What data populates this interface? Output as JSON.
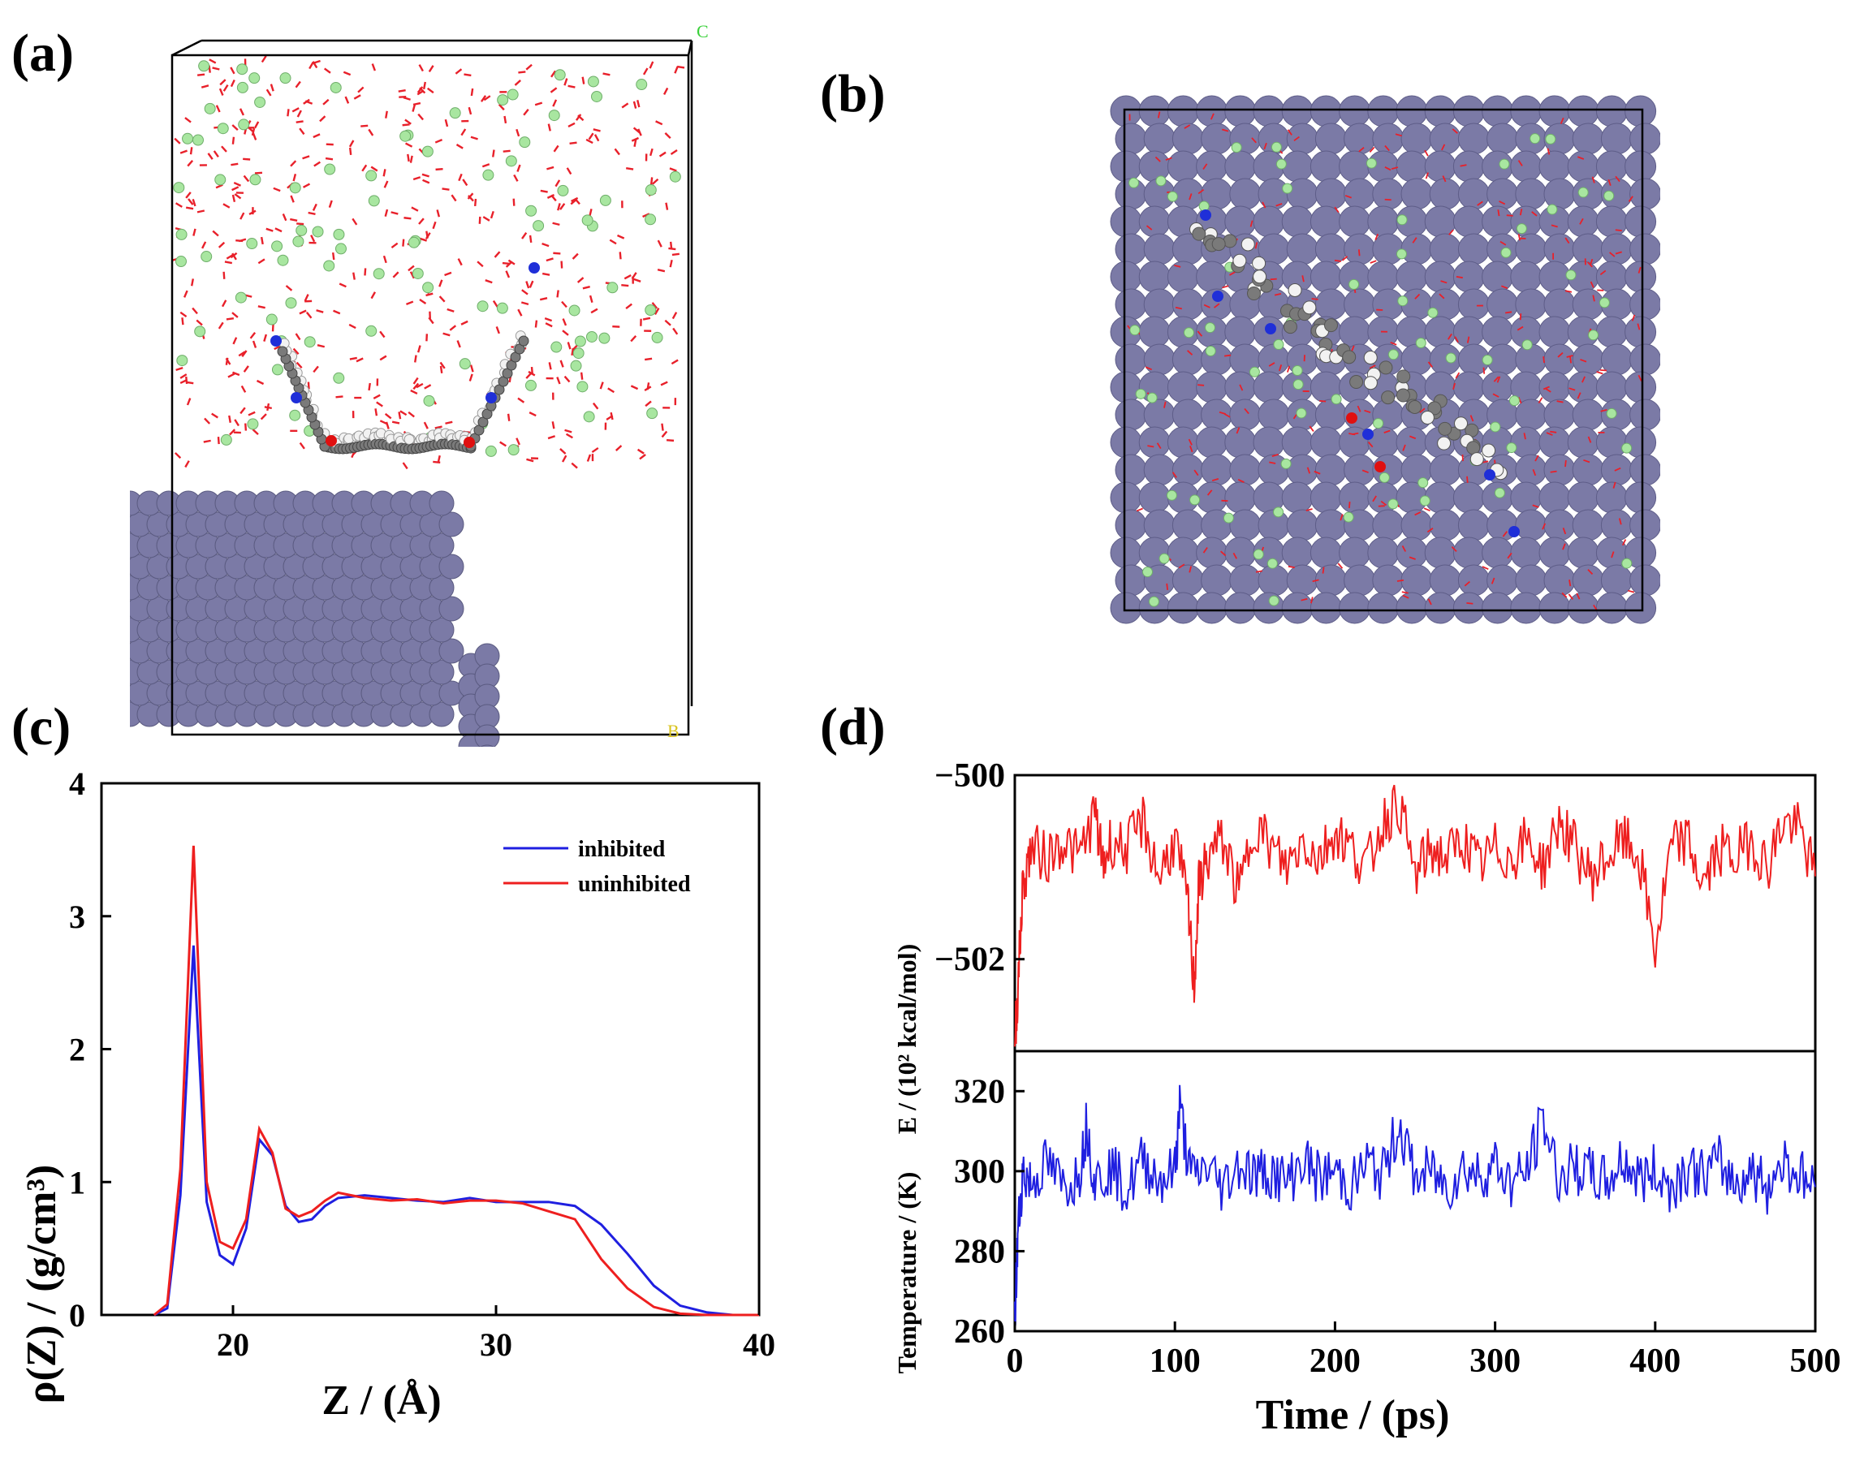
{
  "panels": {
    "a": {
      "label": "(a)",
      "axis_markers": [
        "C",
        "B"
      ]
    },
    "b": {
      "label": "(b)"
    },
    "c": {
      "label": "(c)"
    },
    "d": {
      "label": "(d)"
    }
  },
  "colors": {
    "surface_atom": "#7b7aa6",
    "water": "#e8202a",
    "ion": "#a8e6a0",
    "carbon": "#7a7a7a",
    "hydrogen": "#f2f2f2",
    "nitrogen": "#1f2fd8",
    "oxygen": "#e01010",
    "inhibited": "#1f1fe0",
    "uninhibited": "#ee1f1f"
  },
  "chart_data": [
    {
      "type": "line",
      "panel": "c",
      "xlabel": "Z / (Å)",
      "ylabel": "ρ(Z) / (g/cm³)",
      "xlim": [
        15,
        40
      ],
      "ylim": [
        0,
        4
      ],
      "xticks": [
        "20",
        "30",
        "40"
      ],
      "yticks": [
        "0",
        "1",
        "2",
        "3",
        "4"
      ],
      "legend_position": "top-right",
      "series": [
        {
          "name": "inhibited",
          "color": "#1f1fe0",
          "x": [
            17.0,
            17.5,
            18.0,
            18.5,
            19.0,
            19.5,
            20.0,
            20.5,
            21.0,
            21.5,
            22.0,
            22.5,
            23.0,
            23.5,
            24.0,
            25.0,
            26.0,
            27.0,
            28.0,
            29.0,
            30.0,
            31.0,
            32.0,
            33.0,
            34.0,
            35.0,
            36.0,
            37.0,
            38.0,
            39.0,
            40.0
          ],
          "y": [
            0.0,
            0.05,
            0.9,
            2.78,
            0.85,
            0.45,
            0.38,
            0.65,
            1.32,
            1.2,
            0.82,
            0.7,
            0.72,
            0.82,
            0.88,
            0.9,
            0.88,
            0.86,
            0.85,
            0.88,
            0.85,
            0.85,
            0.85,
            0.82,
            0.68,
            0.46,
            0.22,
            0.07,
            0.02,
            0.0,
            0.0
          ]
        },
        {
          "name": "uninhibited",
          "color": "#ee1f1f",
          "x": [
            17.0,
            17.5,
            18.0,
            18.5,
            19.0,
            19.5,
            20.0,
            20.5,
            21.0,
            21.5,
            22.0,
            22.5,
            23.0,
            23.5,
            24.0,
            25.0,
            26.0,
            27.0,
            28.0,
            29.0,
            30.0,
            31.0,
            32.0,
            33.0,
            34.0,
            35.0,
            36.0,
            37.0,
            38.0,
            39.0,
            40.0
          ],
          "y": [
            0.0,
            0.08,
            1.1,
            3.53,
            1.0,
            0.55,
            0.5,
            0.72,
            1.4,
            1.22,
            0.8,
            0.74,
            0.78,
            0.86,
            0.92,
            0.88,
            0.86,
            0.87,
            0.84,
            0.86,
            0.86,
            0.84,
            0.78,
            0.72,
            0.42,
            0.2,
            0.06,
            0.01,
            0.0,
            0.0,
            0.0
          ]
        }
      ]
    },
    {
      "type": "line",
      "panel": "d-top",
      "ylabel": "E / (10² kcal/mol)",
      "xlim": [
        0,
        500
      ],
      "ylim": [
        -503,
        -500
      ],
      "yticks": [
        "−500",
        "−502"
      ],
      "series": [
        {
          "color": "#ee1f1f",
          "x": [
            0,
            2,
            5,
            10,
            20,
            30,
            40,
            50,
            55,
            60,
            70,
            80,
            90,
            100,
            108,
            112,
            115,
            120,
            130,
            140,
            150,
            160,
            170,
            180,
            190,
            200,
            210,
            220,
            230,
            240,
            250,
            260,
            270,
            280,
            290,
            300,
            310,
            320,
            330,
            340,
            350,
            360,
            370,
            380,
            390,
            400,
            410,
            420,
            430,
            440,
            450,
            460,
            470,
            480,
            490,
            500
          ],
          "y": [
            -502.9,
            -502.3,
            -501.2,
            -500.8,
            -500.9,
            -500.7,
            -500.9,
            -500.4,
            -501.0,
            -500.7,
            -500.8,
            -500.5,
            -501.1,
            -500.7,
            -501.4,
            -502.3,
            -501.2,
            -500.9,
            -500.7,
            -501.3,
            -500.5,
            -500.8,
            -501.0,
            -500.7,
            -500.9,
            -500.6,
            -500.8,
            -501.0,
            -500.5,
            -500.3,
            -501.1,
            -500.8,
            -500.9,
            -500.7,
            -501.0,
            -500.8,
            -500.9,
            -500.7,
            -501.0,
            -500.5,
            -500.8,
            -501.1,
            -500.9,
            -500.7,
            -500.9,
            -501.9,
            -500.8,
            -500.7,
            -501.2,
            -500.8,
            -500.9,
            -500.7,
            -501.0,
            -500.5,
            -500.6,
            -501.1
          ]
        }
      ]
    },
    {
      "type": "line",
      "panel": "d-bottom",
      "xlabel": "Time / (ps)",
      "ylabel": "Temperature / (K)",
      "xlim": [
        0,
        500
      ],
      "ylim": [
        260,
        330
      ],
      "xticks": [
        "0",
        "100",
        "200",
        "300",
        "400",
        "500"
      ],
      "yticks": [
        "260",
        "280",
        "300",
        "320"
      ],
      "series": [
        {
          "color": "#1f1fe0",
          "x": [
            0,
            2,
            5,
            10,
            20,
            30,
            40,
            45,
            50,
            60,
            70,
            80,
            90,
            100,
            103,
            110,
            120,
            130,
            140,
            150,
            160,
            170,
            180,
            190,
            200,
            210,
            220,
            230,
            240,
            250,
            260,
            270,
            280,
            290,
            300,
            310,
            320,
            330,
            340,
            350,
            360,
            370,
            380,
            390,
            400,
            410,
            420,
            430,
            440,
            450,
            460,
            470,
            480,
            490,
            500
          ],
          "y": [
            262,
            285,
            300,
            297,
            302,
            296,
            299,
            312,
            297,
            301,
            295,
            303,
            298,
            300,
            316,
            298,
            301,
            296,
            302,
            299,
            300,
            297,
            303,
            298,
            300,
            296,
            302,
            299,
            312,
            298,
            300,
            296,
            301,
            299,
            302,
            297,
            300,
            313,
            298,
            301,
            299,
            297,
            303,
            298,
            300,
            296,
            301,
            299,
            302,
            297,
            300,
            296,
            303,
            299,
            296
          ]
        }
      ]
    }
  ]
}
